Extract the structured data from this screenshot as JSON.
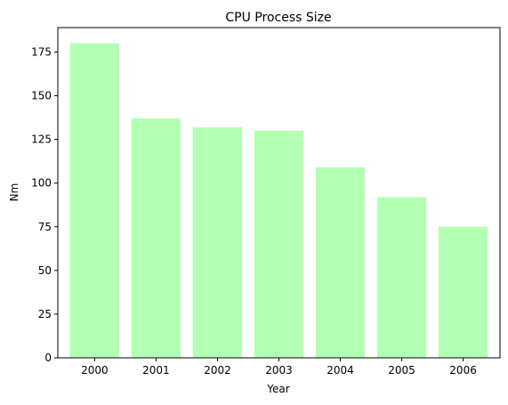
{
  "chart_data": {
    "type": "bar",
    "title": "CPU Process Size",
    "xlabel": "Year",
    "ylabel": "Nm",
    "categories": [
      "2000",
      "2001",
      "2002",
      "2003",
      "2004",
      "2005",
      "2006"
    ],
    "values": [
      180,
      137,
      132,
      130,
      109,
      92,
      75
    ],
    "ylim": [
      0,
      189
    ],
    "yticks": [
      0,
      25,
      50,
      75,
      100,
      125,
      150,
      175
    ],
    "bar_color": "#b3ffb3",
    "grid": false,
    "legend": "none"
  }
}
